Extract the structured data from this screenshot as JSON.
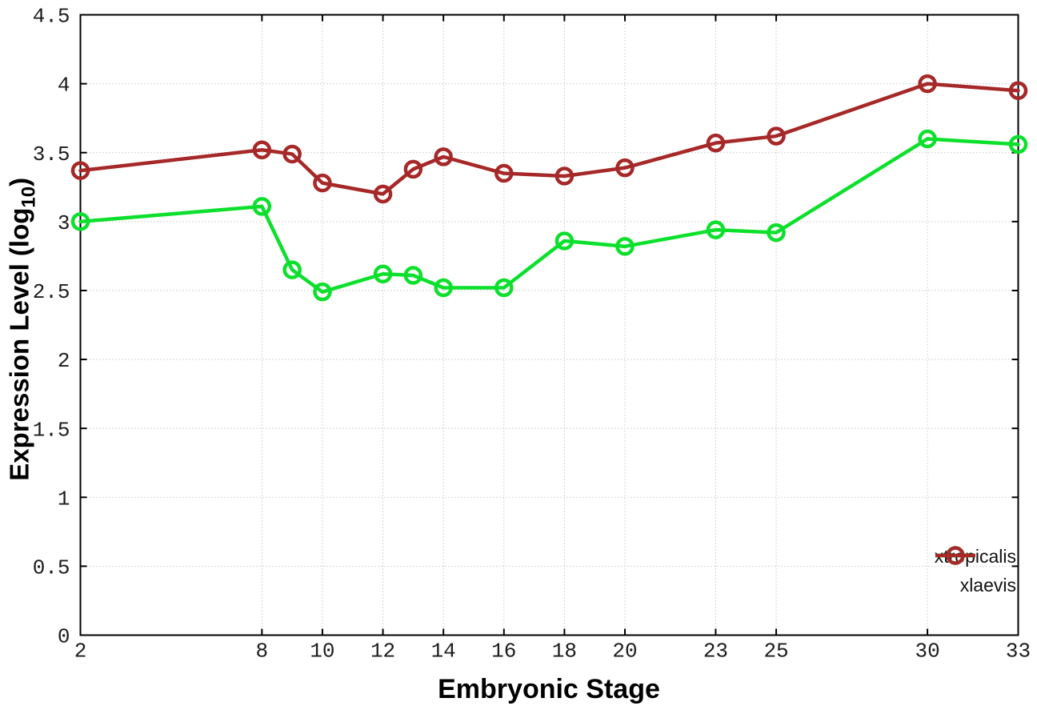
{
  "figure": {
    "background": "#ffffff",
    "border_color": "#000000",
    "grid_color": "#adadad",
    "tick_label_color": "#1c1c1c",
    "ylabel_prefix": "Expression Level (log",
    "ylabel_sub": "10",
    "ylabel_suffix": ")"
  },
  "chart_data": {
    "type": "line",
    "title": "",
    "xlabel": "Embryonic Stage",
    "ylabel": "Expression Level (log10)",
    "x": [
      2,
      8,
      9,
      10,
      12,
      13,
      14,
      16,
      18,
      20,
      23,
      25,
      30,
      33
    ],
    "xticks": [
      2,
      8,
      10,
      12,
      14,
      16,
      18,
      20,
      23,
      25,
      30,
      33
    ],
    "yticks": [
      0,
      0.5,
      1,
      1.5,
      2,
      2.5,
      3,
      3.5,
      4,
      4.5
    ],
    "xlim": [
      2,
      33
    ],
    "ylim": [
      0,
      4.5
    ],
    "grid": true,
    "legend_position": "bottom-right",
    "marker": "open-circle",
    "series": [
      {
        "name": "xtropicalis",
        "color": "#0ce02c",
        "values": [
          3.0,
          3.11,
          2.65,
          2.49,
          2.62,
          2.61,
          2.52,
          2.52,
          2.86,
          2.82,
          2.94,
          2.92,
          3.6,
          3.56
        ]
      },
      {
        "name": "xlaevis",
        "color": "#a62828",
        "values": [
          3.37,
          3.52,
          3.49,
          3.28,
          3.2,
          3.38,
          3.47,
          3.35,
          3.33,
          3.39,
          3.57,
          3.62,
          4.0,
          3.95
        ]
      }
    ]
  }
}
